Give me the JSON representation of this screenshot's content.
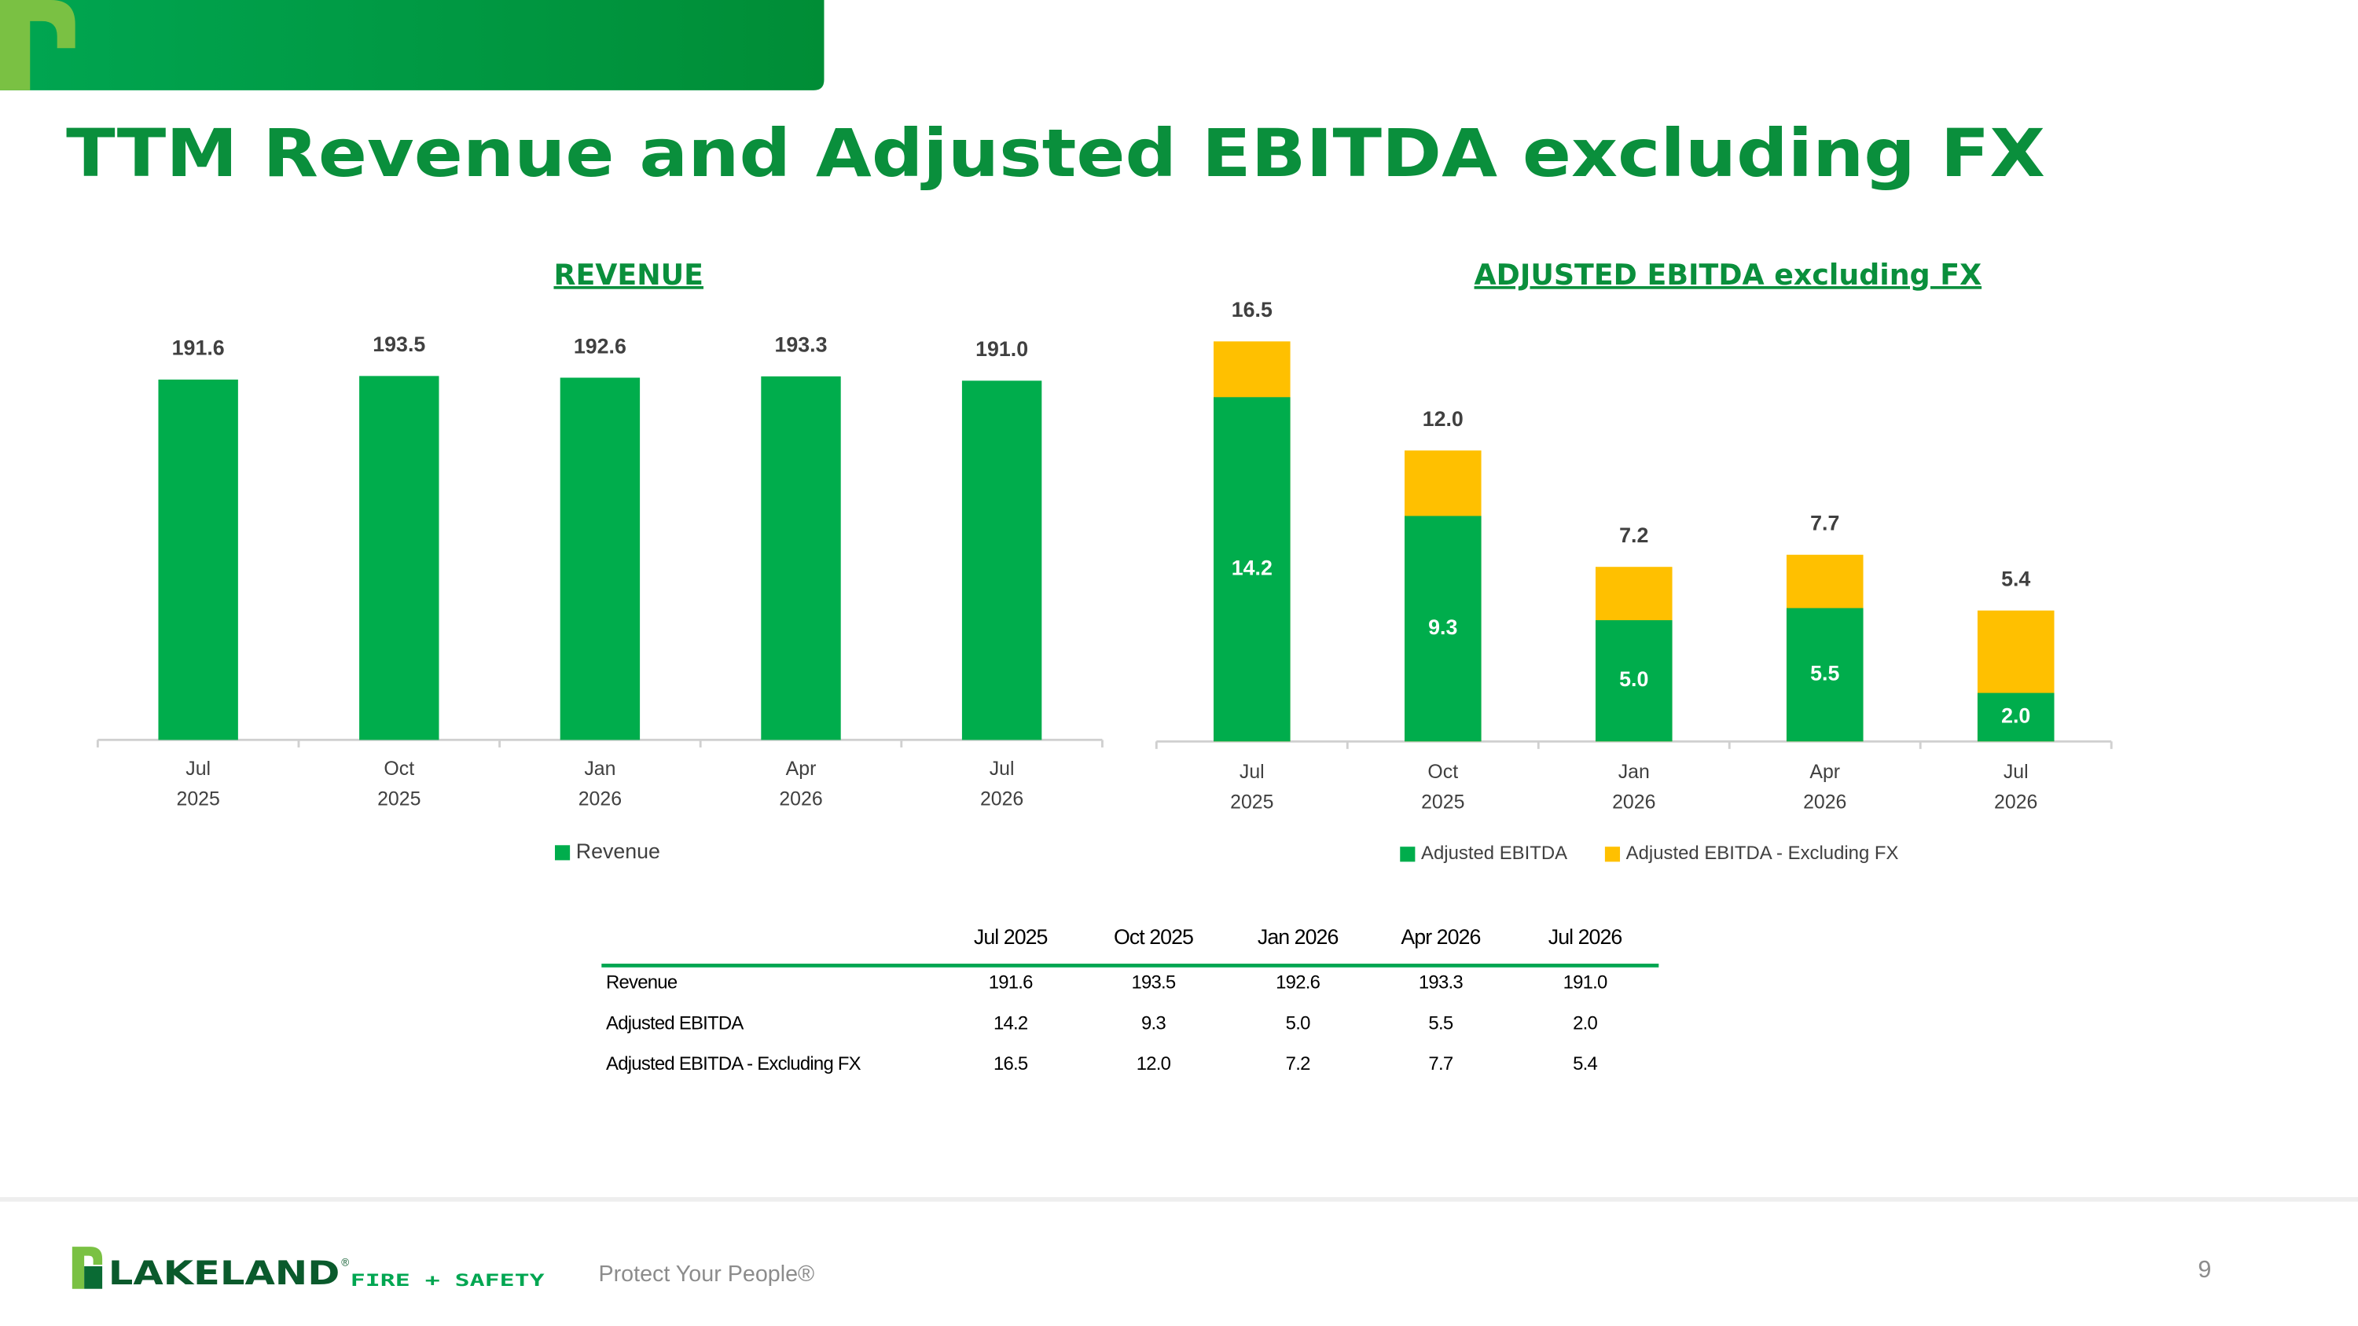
{
  "header": {
    "title": "TTM Revenue and Adjusted EBITDA excluding FX"
  },
  "chart_data": [
    {
      "type": "bar",
      "title": "REVENUE",
      "categories": [
        [
          "Jul",
          "2025"
        ],
        [
          "Oct",
          "2025"
        ],
        [
          "Jan",
          "2026"
        ],
        [
          "Apr",
          "2026"
        ],
        [
          "Jul",
          "2026"
        ]
      ],
      "series": [
        {
          "name": "Revenue",
          "color": "#00ad4c",
          "values": [
            191.6,
            193.5,
            192.6,
            193.3,
            191.0
          ],
          "value_labels": [
            "191.6",
            "193.5",
            "192.6",
            "193.3",
            "191.0"
          ]
        }
      ],
      "legend": "bottom"
    },
    {
      "type": "bar",
      "title": "ADJUSTED EBITDA excluding FX",
      "barmode": "overlay",
      "categories": [
        [
          "Jul",
          "2025"
        ],
        [
          "Oct",
          "2025"
        ],
        [
          "Jan",
          "2026"
        ],
        [
          "Apr",
          "2026"
        ],
        [
          "Jul",
          "2026"
        ]
      ],
      "series": [
        {
          "name": "Adjusted EBITDA",
          "color": "#00ad4c",
          "values": [
            14.2,
            9.3,
            5.0,
            5.5,
            2.0
          ],
          "value_labels": [
            "14.2",
            "9.3",
            "5.0",
            "5.5",
            "2.0"
          ]
        },
        {
          "name": "Adjusted EBITDA - Excluding FX",
          "color": "#ffc000",
          "values": [
            16.5,
            12.0,
            7.2,
            7.7,
            5.4
          ],
          "value_labels": [
            "16.5",
            "12.0",
            "7.2",
            "7.7",
            "5.4"
          ]
        }
      ],
      "legend": "bottom"
    }
  ],
  "table": {
    "columns": [
      "Jul 2025",
      "Oct 2025",
      "Jan 2026",
      "Apr 2026",
      "Jul 2026"
    ],
    "rows": [
      [
        "Revenue",
        "191.6",
        "193.5",
        "192.6",
        "193.3",
        "191.0"
      ],
      [
        "Adjusted EBITDA",
        "14.2",
        "9.3",
        "5.0",
        "5.5",
        "2.0"
      ],
      [
        "Adjusted EBITDA - Excluding FX",
        "16.5",
        "12.0",
        "7.2",
        "7.7",
        "5.4"
      ]
    ]
  },
  "footer": {
    "brand": "LAKELAND",
    "brand_mark": "®",
    "brand_sub": "FIRE + SAFETY",
    "tagline": "Protect Your People®",
    "page": "9"
  }
}
